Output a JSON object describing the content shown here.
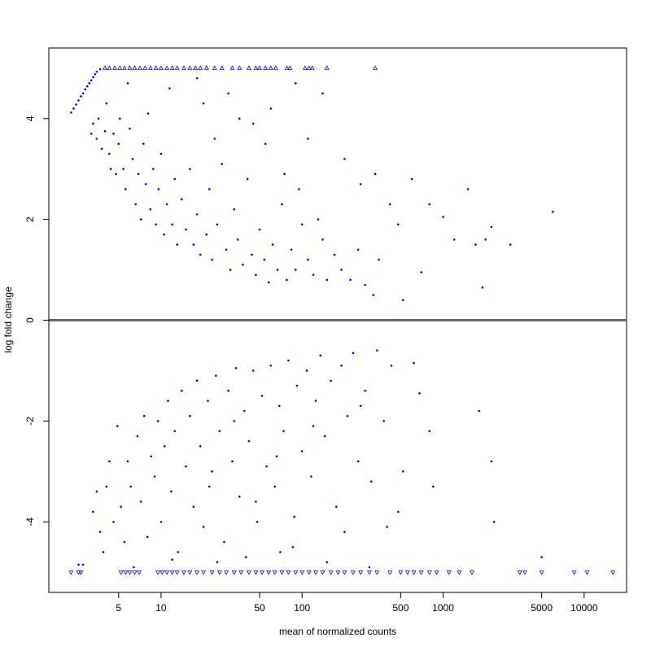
{
  "chart_data": {
    "type": "scatter",
    "title": "",
    "xlabel": "mean of normalized counts",
    "ylabel": "log fold change",
    "x_scale": "log",
    "xlim": [
      1.6,
      20000
    ],
    "ylim": [
      -5.4,
      5.4
    ],
    "x_ticks": [
      5,
      10,
      50,
      100,
      500,
      1000,
      5000,
      10000
    ],
    "x_tick_labels": [
      "5",
      "10",
      "50",
      "100",
      "500",
      "1000",
      "5000",
      "10000"
    ],
    "y_ticks": [
      -4,
      -2,
      0,
      2,
      4
    ],
    "y_tick_labels": [
      "-4",
      "-2",
      "0",
      "2",
      "4"
    ],
    "reference_line": {
      "y": 0,
      "color": "#666666"
    },
    "grid": false,
    "point_color": "#0000ff",
    "series": [
      {
        "marker": "point",
        "points": [
          [
            2.3,
            4.12
          ],
          [
            2.4,
            4.2
          ],
          [
            2.5,
            4.28
          ],
          [
            2.6,
            4.36
          ],
          [
            2.7,
            4.44
          ],
          [
            2.8,
            4.5
          ],
          [
            2.9,
            4.58
          ],
          [
            3.0,
            4.64
          ],
          [
            3.1,
            4.7
          ],
          [
            3.2,
            4.76
          ],
          [
            3.3,
            4.82
          ],
          [
            3.4,
            4.88
          ],
          [
            3.5,
            4.93
          ],
          [
            3.7,
            4.98
          ],
          [
            3.2,
            3.7
          ],
          [
            3.3,
            3.9
          ],
          [
            3.5,
            3.6
          ],
          [
            3.6,
            4.0
          ],
          [
            3.8,
            3.4
          ],
          [
            4.0,
            3.75
          ],
          [
            4.1,
            4.3
          ],
          [
            4.3,
            3.3
          ],
          [
            4.4,
            3.0
          ],
          [
            4.6,
            3.7
          ],
          [
            4.8,
            2.9
          ],
          [
            5.0,
            3.5
          ],
          [
            5.1,
            4.0
          ],
          [
            5.4,
            3.0
          ],
          [
            5.6,
            2.6
          ],
          [
            5.8,
            4.7
          ],
          [
            6.0,
            3.8
          ],
          [
            6.3,
            3.2
          ],
          [
            6.6,
            2.3
          ],
          [
            6.9,
            2.9
          ],
          [
            7.2,
            2.0
          ],
          [
            7.5,
            3.5
          ],
          [
            7.8,
            2.7
          ],
          [
            8.1,
            4.1
          ],
          [
            8.4,
            2.2
          ],
          [
            8.8,
            3.0
          ],
          [
            9.2,
            1.9
          ],
          [
            9.6,
            2.6
          ],
          [
            10.0,
            3.3
          ],
          [
            10.5,
            1.7
          ],
          [
            11.0,
            2.3
          ],
          [
            11.5,
            4.6
          ],
          [
            12.0,
            1.9
          ],
          [
            12.5,
            2.8
          ],
          [
            13.0,
            1.5
          ],
          [
            14.0,
            2.4
          ],
          [
            15.0,
            1.8
          ],
          [
            16.0,
            3.0
          ],
          [
            17.0,
            1.5
          ],
          [
            18.0,
            2.1
          ],
          [
            19.0,
            1.3
          ],
          [
            20.0,
            4.3
          ],
          [
            21.0,
            1.7
          ],
          [
            22.0,
            2.6
          ],
          [
            23.0,
            1.2
          ],
          [
            25.0,
            1.9
          ],
          [
            27.0,
            3.1
          ],
          [
            29.0,
            1.4
          ],
          [
            31.0,
            1.0
          ],
          [
            33.0,
            2.2
          ],
          [
            35.0,
            1.6
          ],
          [
            38.0,
            1.1
          ],
          [
            41.0,
            2.8
          ],
          [
            44.0,
            1.3
          ],
          [
            47.0,
            0.9
          ],
          [
            50.0,
            1.8
          ],
          [
            54.0,
            1.2
          ],
          [
            58.0,
            0.75
          ],
          [
            62.0,
            1.5
          ],
          [
            67.0,
            1.0
          ],
          [
            72.0,
            2.3
          ],
          [
            78.0,
            0.8
          ],
          [
            84.0,
            1.4
          ],
          [
            90.0,
            1.0
          ],
          [
            100.0,
            1.9
          ],
          [
            110.0,
            1.2
          ],
          [
            120.0,
            0.9
          ],
          [
            130.0,
            2.0
          ],
          [
            140.0,
            1.6
          ],
          [
            150.0,
            0.8
          ],
          [
            170.0,
            1.3
          ],
          [
            190.0,
            1.0
          ],
          [
            220.0,
            0.8
          ],
          [
            250.0,
            1.4
          ],
          [
            280.0,
            0.7
          ],
          [
            320.0,
            0.5
          ],
          [
            350.0,
            1.2
          ],
          [
            420.0,
            2.3
          ],
          [
            480.0,
            1.9
          ],
          [
            520.0,
            0.4
          ],
          [
            600.0,
            2.8
          ],
          [
            700.0,
            0.95
          ],
          [
            800.0,
            2.3
          ],
          [
            1000.0,
            2.05
          ],
          [
            1200.0,
            1.6
          ],
          [
            1500.0,
            2.6
          ],
          [
            1700.0,
            1.5
          ],
          [
            1900.0,
            0.65
          ],
          [
            2000.0,
            1.6
          ],
          [
            2200.0,
            1.85
          ],
          [
            3000.0,
            1.5
          ],
          [
            6000.0,
            2.15
          ],
          [
            30.0,
            4.5
          ],
          [
            45.0,
            3.9
          ],
          [
            60.0,
            4.2
          ],
          [
            90.0,
            4.7
          ],
          [
            110.0,
            3.6
          ],
          [
            140.0,
            4.5
          ],
          [
            200.0,
            3.2
          ],
          [
            260.0,
            2.7
          ],
          [
            330.0,
            2.9
          ],
          [
            18.0,
            4.8
          ],
          [
            24.0,
            3.6
          ],
          [
            36.0,
            4.0
          ],
          [
            55.0,
            3.5
          ],
          [
            75.0,
            2.9
          ],
          [
            95.0,
            2.6
          ],
          [
            2.6,
            -4.85
          ],
          [
            2.8,
            -4.85
          ],
          [
            3.3,
            -3.8
          ],
          [
            3.5,
            -3.4
          ],
          [
            3.7,
            -4.2
          ],
          [
            3.9,
            -4.6
          ],
          [
            4.1,
            -3.3
          ],
          [
            4.3,
            -2.8
          ],
          [
            4.6,
            -4.0
          ],
          [
            4.9,
            -2.1
          ],
          [
            5.2,
            -3.7
          ],
          [
            5.5,
            -4.4
          ],
          [
            5.8,
            -2.8
          ],
          [
            6.1,
            -3.3
          ],
          [
            6.4,
            -4.9
          ],
          [
            6.8,
            -2.3
          ],
          [
            7.2,
            -3.6
          ],
          [
            7.6,
            -1.9
          ],
          [
            8.0,
            -4.3
          ],
          [
            8.5,
            -2.7
          ],
          [
            9.0,
            -3.1
          ],
          [
            9.5,
            -2.0
          ],
          [
            10.0,
            -4.0
          ],
          [
            10.6,
            -2.5
          ],
          [
            11.2,
            -1.6
          ],
          [
            11.8,
            -3.4
          ],
          [
            12.5,
            -2.2
          ],
          [
            13.2,
            -4.6
          ],
          [
            14.0,
            -1.4
          ],
          [
            15.0,
            -2.9
          ],
          [
            16.0,
            -1.9
          ],
          [
            17.0,
            -3.7
          ],
          [
            18.0,
            -1.2
          ],
          [
            19.0,
            -2.5
          ],
          [
            20.0,
            -4.1
          ],
          [
            21.5,
            -1.6
          ],
          [
            23.0,
            -3.0
          ],
          [
            24.5,
            -1.1
          ],
          [
            26.0,
            -2.2
          ],
          [
            28.0,
            -4.4
          ],
          [
            30.0,
            -1.4
          ],
          [
            32.0,
            -2.8
          ],
          [
            34.0,
            -0.95
          ],
          [
            36.0,
            -3.5
          ],
          [
            39.0,
            -1.8
          ],
          [
            42.0,
            -2.4
          ],
          [
            45.0,
            -1.0
          ],
          [
            48.0,
            -4.0
          ],
          [
            52.0,
            -1.5
          ],
          [
            56.0,
            -2.9
          ],
          [
            60.0,
            -0.9
          ],
          [
            64.0,
            -3.3
          ],
          [
            69.0,
            -1.7
          ],
          [
            74.0,
            -2.2
          ],
          [
            80.0,
            -0.8
          ],
          [
            86.0,
            -4.5
          ],
          [
            92.0,
            -1.3
          ],
          [
            100.0,
            -2.6
          ],
          [
            108.0,
            -1.0
          ],
          [
            116.0,
            -3.1
          ],
          [
            125.0,
            -1.6
          ],
          [
            135.0,
            -0.7
          ],
          [
            145.0,
            -2.3
          ],
          [
            160.0,
            -1.2
          ],
          [
            175.0,
            -3.7
          ],
          [
            190.0,
            -0.9
          ],
          [
            210.0,
            -1.9
          ],
          [
            230.0,
            -0.65
          ],
          [
            250.0,
            -2.8
          ],
          [
            280.0,
            -1.4
          ],
          [
            310.0,
            -3.2
          ],
          [
            340.0,
            -0.6
          ],
          [
            380.0,
            -2.0
          ],
          [
            430.0,
            -0.9
          ],
          [
            480.0,
            -3.8
          ],
          [
            520.0,
            -3.0
          ],
          [
            620.0,
            -0.85
          ],
          [
            680.0,
            -1.45
          ],
          [
            800.0,
            -2.2
          ],
          [
            850.0,
            -3.3
          ],
          [
            1800.0,
            -1.8
          ],
          [
            2200.0,
            -2.8
          ],
          [
            2300.0,
            -4.0
          ],
          [
            5000.0,
            -4.7
          ],
          [
            300.0,
            -4.9
          ],
          [
            150.0,
            -4.8
          ],
          [
            70.0,
            -4.6
          ],
          [
            40.0,
            -4.7
          ],
          [
            25.0,
            -4.8
          ],
          [
            12.0,
            -4.75
          ],
          [
            22.0,
            -3.3
          ],
          [
            33.0,
            -2.0
          ],
          [
            47.0,
            -3.6
          ],
          [
            66.0,
            -2.7
          ],
          [
            88.0,
            -3.9
          ],
          [
            120.0,
            -2.1
          ],
          [
            200.0,
            -4.2
          ],
          [
            260.0,
            -1.7
          ],
          [
            400.0,
            -4.1
          ]
        ]
      },
      {
        "marker": "triangle-up",
        "note": "",
        "points": [
          [
            4.0,
            5.0
          ],
          [
            4.3,
            5.0
          ],
          [
            4.7,
            5.0
          ],
          [
            5.1,
            5.0
          ],
          [
            5.5,
            5.0
          ],
          [
            6.0,
            5.0
          ],
          [
            6.5,
            5.0
          ],
          [
            7.1,
            5.0
          ],
          [
            7.7,
            5.0
          ],
          [
            8.4,
            5.0
          ],
          [
            9.2,
            5.0
          ],
          [
            10.0,
            5.0
          ],
          [
            11.0,
            5.0
          ],
          [
            12.0,
            5.0
          ],
          [
            13.0,
            5.0
          ],
          [
            14.5,
            5.0
          ],
          [
            16.0,
            5.0
          ],
          [
            17.5,
            5.0
          ],
          [
            19.0,
            5.0
          ],
          [
            21.0,
            5.0
          ],
          [
            24.0,
            5.0
          ],
          [
            27.0,
            5.0
          ],
          [
            32.0,
            5.0
          ],
          [
            36.0,
            5.0
          ],
          [
            42.0,
            5.0
          ],
          [
            47.0,
            5.0
          ],
          [
            50.0,
            5.0
          ],
          [
            55.0,
            5.0
          ],
          [
            60.0,
            5.0
          ],
          [
            65.0,
            5.0
          ],
          [
            78.0,
            5.0
          ],
          [
            82.0,
            5.0
          ],
          [
            105.0,
            5.0
          ],
          [
            112.0,
            5.0
          ],
          [
            118.0,
            5.0
          ],
          [
            150.0,
            5.0
          ],
          [
            330.0,
            5.0
          ]
        ]
      },
      {
        "marker": "triangle-down",
        "note": "",
        "points": [
          [
            2.3,
            -5.0
          ],
          [
            2.6,
            -5.0
          ],
          [
            2.7,
            -5.0
          ],
          [
            5.2,
            -5.0
          ],
          [
            5.6,
            -5.0
          ],
          [
            6.0,
            -5.0
          ],
          [
            6.5,
            -5.0
          ],
          [
            7.0,
            -5.0
          ],
          [
            9.5,
            -5.0
          ],
          [
            10.2,
            -5.0
          ],
          [
            11.0,
            -5.0
          ],
          [
            12.0,
            -5.0
          ],
          [
            13.0,
            -5.0
          ],
          [
            14.5,
            -5.0
          ],
          [
            16.0,
            -5.0
          ],
          [
            18.0,
            -5.0
          ],
          [
            20.0,
            -5.0
          ],
          [
            23.0,
            -5.0
          ],
          [
            26.0,
            -5.0
          ],
          [
            29.0,
            -5.0
          ],
          [
            33.0,
            -5.0
          ],
          [
            37.0,
            -5.0
          ],
          [
            42.0,
            -5.0
          ],
          [
            47.0,
            -5.0
          ],
          [
            52.0,
            -5.0
          ],
          [
            58.0,
            -5.0
          ],
          [
            64.0,
            -5.0
          ],
          [
            72.0,
            -5.0
          ],
          [
            80.0,
            -5.0
          ],
          [
            90.0,
            -5.0
          ],
          [
            100.0,
            -5.0
          ],
          [
            112.0,
            -5.0
          ],
          [
            125.0,
            -5.0
          ],
          [
            140.0,
            -5.0
          ],
          [
            160.0,
            -5.0
          ],
          [
            180.0,
            -5.0
          ],
          [
            200.0,
            -5.0
          ],
          [
            230.0,
            -5.0
          ],
          [
            260.0,
            -5.0
          ],
          [
            300.0,
            -5.0
          ],
          [
            340.0,
            -5.0
          ],
          [
            420.0,
            -5.0
          ],
          [
            500.0,
            -5.0
          ],
          [
            560.0,
            -5.0
          ],
          [
            620.0,
            -5.0
          ],
          [
            700.0,
            -5.0
          ],
          [
            800.0,
            -5.0
          ],
          [
            900.0,
            -5.0
          ],
          [
            1100.0,
            -5.0
          ],
          [
            1300.0,
            -5.0
          ],
          [
            1600.0,
            -5.0
          ],
          [
            3500.0,
            -5.0
          ],
          [
            3800.0,
            -5.0
          ],
          [
            5000.0,
            -5.0
          ],
          [
            8500.0,
            -5.0
          ],
          [
            10500.0,
            -5.0
          ],
          [
            16000.0,
            -5.0
          ]
        ]
      }
    ]
  }
}
